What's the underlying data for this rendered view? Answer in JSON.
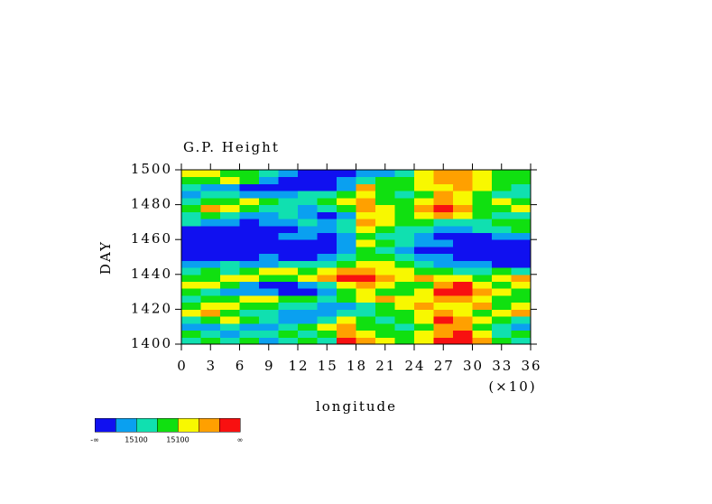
{
  "chart_data": {
    "type": "heatmap",
    "title": "G.P. Height",
    "xlabel": "longitude",
    "ylabel": "DAY",
    "x_multiplier": "(×10)",
    "xlim": [
      0,
      36
    ],
    "ylim": [
      1400,
      1500
    ],
    "xticks": [
      0,
      3,
      6,
      9,
      12,
      15,
      18,
      21,
      24,
      27,
      30,
      33,
      36
    ],
    "yticks": [
      1400,
      1420,
      1440,
      1460,
      1480,
      1500
    ],
    "colors": [
      "#1010f0",
      "#0aa0f0",
      "#10e0b0",
      "#10e010",
      "#f8f800",
      "#ffa000",
      "#f81010"
    ],
    "colorbar_labels": [
      "-∞",
      null,
      "15100",
      null,
      "15100",
      null,
      null,
      "∞"
    ],
    "z": [
      [
        2,
        3,
        2,
        3,
        1,
        2,
        3,
        2,
        6,
        5,
        4,
        3,
        4,
        6,
        6,
        5,
        3,
        2
      ],
      [
        3,
        2,
        1,
        2,
        2,
        3,
        2,
        3,
        5,
        4,
        3,
        3,
        4,
        5,
        6,
        4,
        2,
        3
      ],
      [
        1,
        1,
        2,
        1,
        1,
        2,
        3,
        4,
        5,
        3,
        3,
        2,
        3,
        5,
        5,
        3,
        2,
        1
      ],
      [
        2,
        3,
        4,
        3,
        2,
        1,
        1,
        2,
        4,
        3,
        2,
        3,
        4,
        6,
        5,
        4,
        3,
        2
      ],
      [
        4,
        5,
        3,
        2,
        2,
        1,
        1,
        1,
        2,
        2,
        3,
        3,
        4,
        5,
        4,
        3,
        4,
        5
      ],
      [
        3,
        4,
        4,
        3,
        3,
        2,
        2,
        1,
        1,
        2,
        3,
        4,
        5,
        4,
        4,
        5,
        3,
        4
      ],
      [
        2,
        3,
        3,
        4,
        4,
        3,
        3,
        2,
        3,
        4,
        5,
        4,
        4,
        5,
        5,
        4,
        3,
        3
      ],
      [
        3,
        2,
        1,
        1,
        1,
        0,
        0,
        1,
        3,
        4,
        3,
        3,
        4,
        6,
        6,
        5,
        4,
        3
      ],
      [
        4,
        4,
        3,
        1,
        0,
        0,
        1,
        2,
        4,
        5,
        4,
        3,
        3,
        5,
        6,
        4,
        3,
        4
      ],
      [
        3,
        3,
        4,
        4,
        3,
        3,
        4,
        5,
        6,
        6,
        5,
        4,
        5,
        4,
        4,
        3,
        4,
        5
      ],
      [
        2,
        3,
        2,
        3,
        4,
        4,
        3,
        4,
        5,
        5,
        4,
        4,
        3,
        3,
        2,
        2,
        3,
        2
      ],
      [
        1,
        1,
        2,
        1,
        1,
        2,
        2,
        2,
        3,
        4,
        4,
        3,
        2,
        1,
        1,
        1,
        0,
        0
      ],
      [
        0,
        0,
        0,
        0,
        1,
        0,
        0,
        1,
        2,
        3,
        3,
        2,
        1,
        1,
        0,
        0,
        0,
        0
      ],
      [
        0,
        0,
        0,
        0,
        0,
        0,
        0,
        0,
        1,
        3,
        2,
        1,
        0,
        0,
        0,
        0,
        0,
        0
      ],
      [
        0,
        0,
        0,
        0,
        0,
        0,
        0,
        0,
        1,
        4,
        3,
        2,
        1,
        1,
        0,
        0,
        0,
        0
      ],
      [
        0,
        0,
        0,
        0,
        0,
        1,
        1,
        0,
        1,
        3,
        2,
        2,
        1,
        0,
        0,
        0,
        1,
        1
      ],
      [
        0,
        0,
        0,
        0,
        0,
        0,
        1,
        1,
        2,
        4,
        3,
        2,
        2,
        1,
        1,
        2,
        2,
        3
      ],
      [
        2,
        1,
        1,
        0,
        1,
        1,
        2,
        1,
        2,
        5,
        4,
        3,
        3,
        2,
        2,
        2,
        3,
        3
      ],
      [
        2,
        3,
        2,
        1,
        1,
        2,
        1,
        0,
        1,
        4,
        4,
        3,
        4,
        5,
        4,
        3,
        2,
        2
      ],
      [
        3,
        5,
        4,
        3,
        2,
        2,
        1,
        2,
        3,
        5,
        4,
        3,
        5,
        6,
        5,
        3,
        3,
        4
      ],
      [
        2,
        3,
        3,
        4,
        3,
        2,
        2,
        3,
        4,
        5,
        3,
        3,
        4,
        5,
        4,
        3,
        4,
        3
      ],
      [
        1,
        2,
        2,
        1,
        1,
        1,
        2,
        2,
        3,
        4,
        3,
        2,
        3,
        5,
        4,
        3,
        2,
        2
      ],
      [
        2,
        1,
        1,
        0,
        0,
        0,
        0,
        0,
        1,
        5,
        3,
        3,
        4,
        4,
        5,
        4,
        3,
        2
      ],
      [
        3,
        3,
        4,
        3,
        1,
        0,
        0,
        0,
        1,
        2,
        3,
        3,
        4,
        5,
        5,
        4,
        3,
        3
      ],
      [
        4,
        4,
        3,
        3,
        2,
        1,
        0,
        0,
        0,
        1,
        1,
        2,
        4,
        5,
        5,
        4,
        3,
        3
      ]
    ]
  }
}
